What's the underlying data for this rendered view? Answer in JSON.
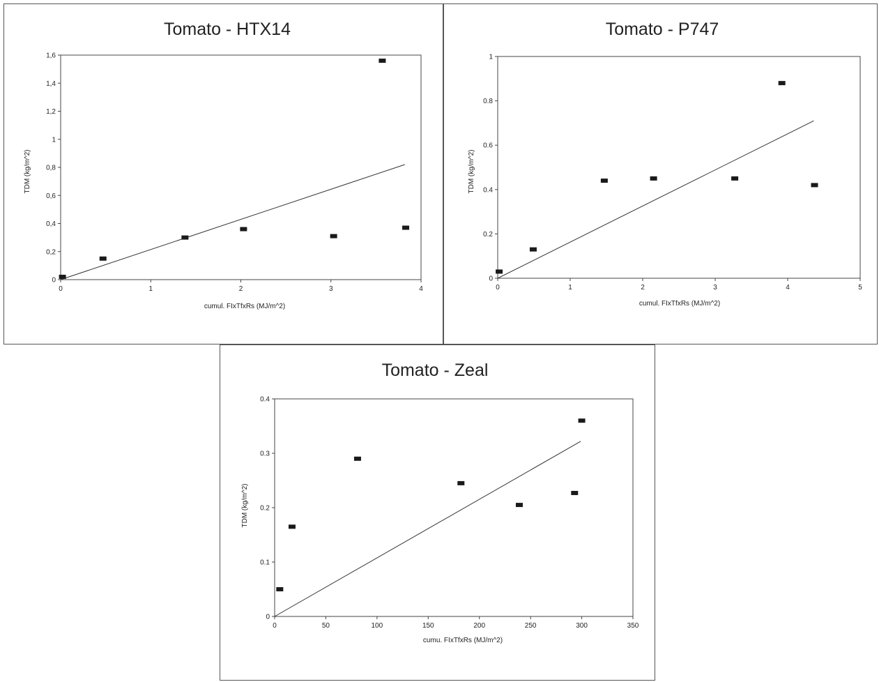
{
  "chart_data": [
    {
      "type": "scatter",
      "title": "Tomato - HTX14",
      "xlabel": "cumul. FIxTfxRs (MJ/m^2)",
      "ylabel": "TDM (kg/m^2)",
      "xlim": [
        0,
        4
      ],
      "ylim": [
        0,
        1.6
      ],
      "xticks": [
        0,
        1,
        2,
        3,
        4
      ],
      "yticks": [
        0,
        0.2,
        0.4,
        0.6,
        0.8,
        1,
        1.2,
        1.4,
        1.6
      ],
      "xtick_labels": [
        "0",
        "1",
        "2",
        "3",
        "4"
      ],
      "ytick_labels": [
        "0",
        "0,2",
        "0,4",
        "0,6",
        "0,8",
        "1",
        "1,2",
        "1,4",
        "1,6"
      ],
      "top_gridline": true,
      "points": [
        {
          "x": 0.02,
          "y": 0.02
        },
        {
          "x": 0.47,
          "y": 0.15
        },
        {
          "x": 1.38,
          "y": 0.3
        },
        {
          "x": 2.03,
          "y": 0.36
        },
        {
          "x": 3.03,
          "y": 0.31
        },
        {
          "x": 3.57,
          "y": 1.56
        },
        {
          "x": 3.83,
          "y": 0.37
        }
      ],
      "trendline": {
        "x": [
          0,
          3.82
        ],
        "y": [
          0,
          0.82
        ]
      }
    },
    {
      "type": "scatter",
      "title": "Tomato - P747",
      "xlabel": "cumul. FIxTfxRs (MJ/m^2)",
      "ylabel": "TDM (kg/m^2)",
      "xlim": [
        0,
        5
      ],
      "ylim": [
        0,
        1
      ],
      "xticks": [
        0,
        1,
        2,
        3,
        4,
        5
      ],
      "yticks": [
        0,
        0.2,
        0.4,
        0.6,
        0.8,
        1
      ],
      "xtick_labels": [
        "0",
        "1",
        "2",
        "3",
        "4",
        "5"
      ],
      "ytick_labels": [
        "0",
        "0.2",
        "0.4",
        "0.6",
        "0.8",
        "1"
      ],
      "top_gridline": true,
      "points": [
        {
          "x": 0.02,
          "y": 0.03
        },
        {
          "x": 0.49,
          "y": 0.13
        },
        {
          "x": 1.47,
          "y": 0.44
        },
        {
          "x": 2.15,
          "y": 0.45
        },
        {
          "x": 3.27,
          "y": 0.45
        },
        {
          "x": 3.92,
          "y": 0.88
        },
        {
          "x": 4.37,
          "y": 0.42
        }
      ],
      "trendline": {
        "x": [
          0,
          4.36
        ],
        "y": [
          0,
          0.71
        ]
      }
    },
    {
      "type": "scatter",
      "title": "Tomato - Zeal",
      "xlabel": "cumu. FIxTfxRs (MJ/m^2)",
      "ylabel": "TDM (kg/m^2)",
      "xlim": [
        0,
        350
      ],
      "ylim": [
        0,
        0.4
      ],
      "xticks": [
        0,
        50,
        100,
        150,
        200,
        250,
        300,
        350
      ],
      "yticks": [
        0,
        0.1,
        0.2,
        0.3,
        0.4
      ],
      "xtick_labels": [
        "0",
        "50",
        "100",
        "150",
        "200",
        "250",
        "300",
        "350"
      ],
      "ytick_labels": [
        "0",
        "0.1",
        "0.2",
        "0.3",
        "0.4"
      ],
      "top_gridline": false,
      "points": [
        {
          "x": 5,
          "y": 0.05
        },
        {
          "x": 17,
          "y": 0.165
        },
        {
          "x": 81,
          "y": 0.29
        },
        {
          "x": 182,
          "y": 0.245
        },
        {
          "x": 239,
          "y": 0.205
        },
        {
          "x": 293,
          "y": 0.227
        },
        {
          "x": 300,
          "y": 0.36
        }
      ],
      "trendline": {
        "x": [
          0,
          299
        ],
        "y": [
          0,
          0.322
        ]
      }
    }
  ]
}
